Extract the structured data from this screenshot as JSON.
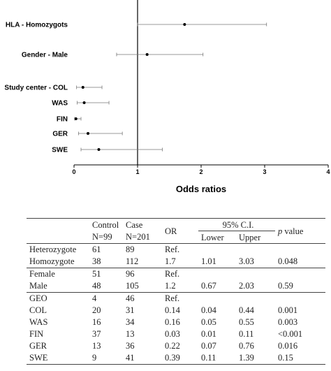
{
  "chart_data": {
    "type": "forest",
    "xlabel": "Odds ratios",
    "xlim": [
      0,
      4
    ],
    "xticks": [
      "0",
      "1",
      "2",
      "3",
      "4"
    ],
    "reference_line": 1,
    "rows": [
      {
        "label": "HLA - Homozygots",
        "or": 1.74,
        "lower": 1.0,
        "upper": 3.03
      },
      {
        "label": "Gender - Male",
        "or": 1.15,
        "lower": 0.67,
        "upper": 2.03
      },
      {
        "label": "Study center - COL",
        "or": 0.14,
        "lower": 0.04,
        "upper": 0.44
      },
      {
        "label": "WAS",
        "or": 0.16,
        "lower": 0.05,
        "upper": 0.55
      },
      {
        "label": "FIN",
        "or": 0.03,
        "lower": 0.01,
        "upper": 0.11
      },
      {
        "label": "GER",
        "or": 0.22,
        "lower": 0.07,
        "upper": 0.76
      },
      {
        "label": "SWE",
        "or": 0.39,
        "lower": 0.11,
        "upper": 1.39
      }
    ]
  },
  "table": {
    "header": {
      "control_top": "Control",
      "control_bottom": "N=99",
      "case_top": "Case",
      "case_bottom": "N=201",
      "or": "OR",
      "ci": "95% C.I.",
      "lower": "Lower",
      "upper": "Upper",
      "p_italic": "p",
      "p_rest": " value"
    },
    "groups": [
      [
        {
          "name": "Heterozygote",
          "control": "61",
          "case": "89",
          "or": "Ref.",
          "lower": "",
          "upper": "",
          "p": ""
        },
        {
          "name": "Homozygote",
          "control": "38",
          "case": "112",
          "or": "1.7",
          "lower": "1.01",
          "upper": "3.03",
          "p": "0.048"
        }
      ],
      [
        {
          "name": "Female",
          "control": "51",
          "case": "96",
          "or": "Ref.",
          "lower": "",
          "upper": "",
          "p": ""
        },
        {
          "name": "Male",
          "control": "48",
          "case": "105",
          "or": "1.2",
          "lower": "0.67",
          "upper": "2.03",
          "p": "0.59"
        }
      ],
      [
        {
          "name": "GEO",
          "control": "4",
          "case": "46",
          "or": "Ref.",
          "lower": "",
          "upper": "",
          "p": ""
        },
        {
          "name": "COL",
          "control": "20",
          "case": "31",
          "or": "0.14",
          "lower": "0.04",
          "upper": "0.44",
          "p": "0.001"
        },
        {
          "name": "WAS",
          "control": "16",
          "case": "34",
          "or": "0.16",
          "lower": "0.05",
          "upper": "0.55",
          "p": "0.003"
        },
        {
          "name": "FIN",
          "control": "37",
          "case": "13",
          "or": "0.03",
          "lower": "0.01",
          "upper": "0.11",
          "p": "<0.001"
        },
        {
          "name": "GER",
          "control": "13",
          "case": "36",
          "or": "0.22",
          "lower": "0.07",
          "upper": "0.76",
          "p": "0.016"
        },
        {
          "name": "SWE",
          "control": "9",
          "case": "41",
          "or": "0.39",
          "lower": "0.11",
          "upper": "1.39",
          "p": "0.15"
        }
      ]
    ]
  }
}
